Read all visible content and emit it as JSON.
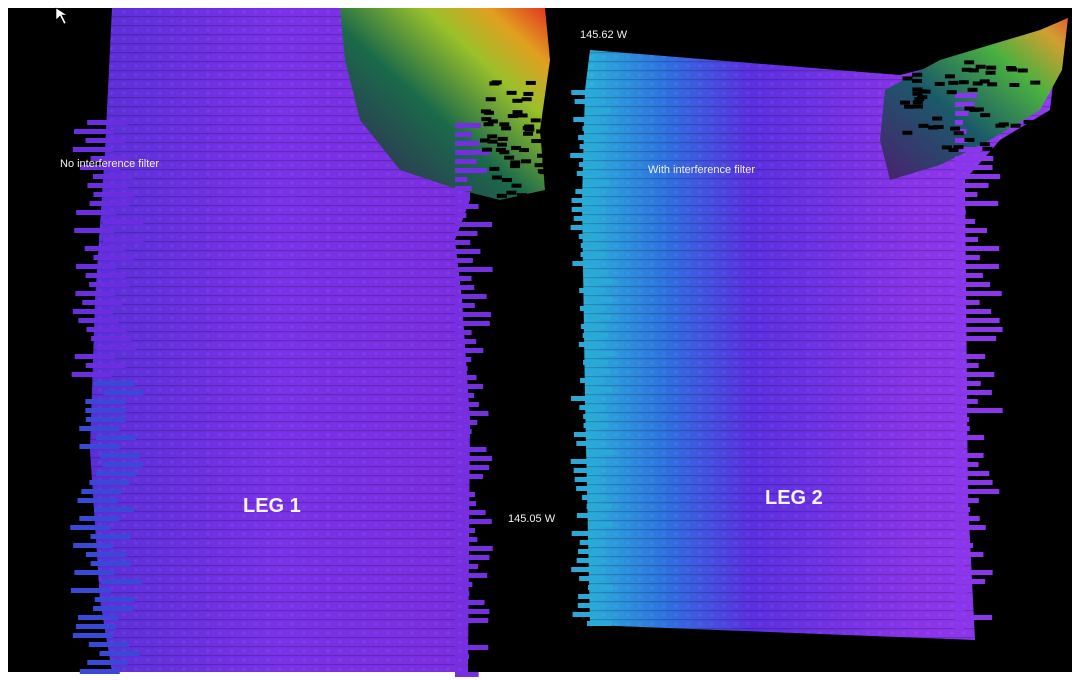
{
  "labels": {
    "left_note": "No interference filter",
    "right_note": "With interference filter",
    "left_leg": "LEG 1",
    "right_leg": "LEG 2",
    "top_longitude": "145.62 W",
    "middle_longitude": "145.05 W"
  }
}
